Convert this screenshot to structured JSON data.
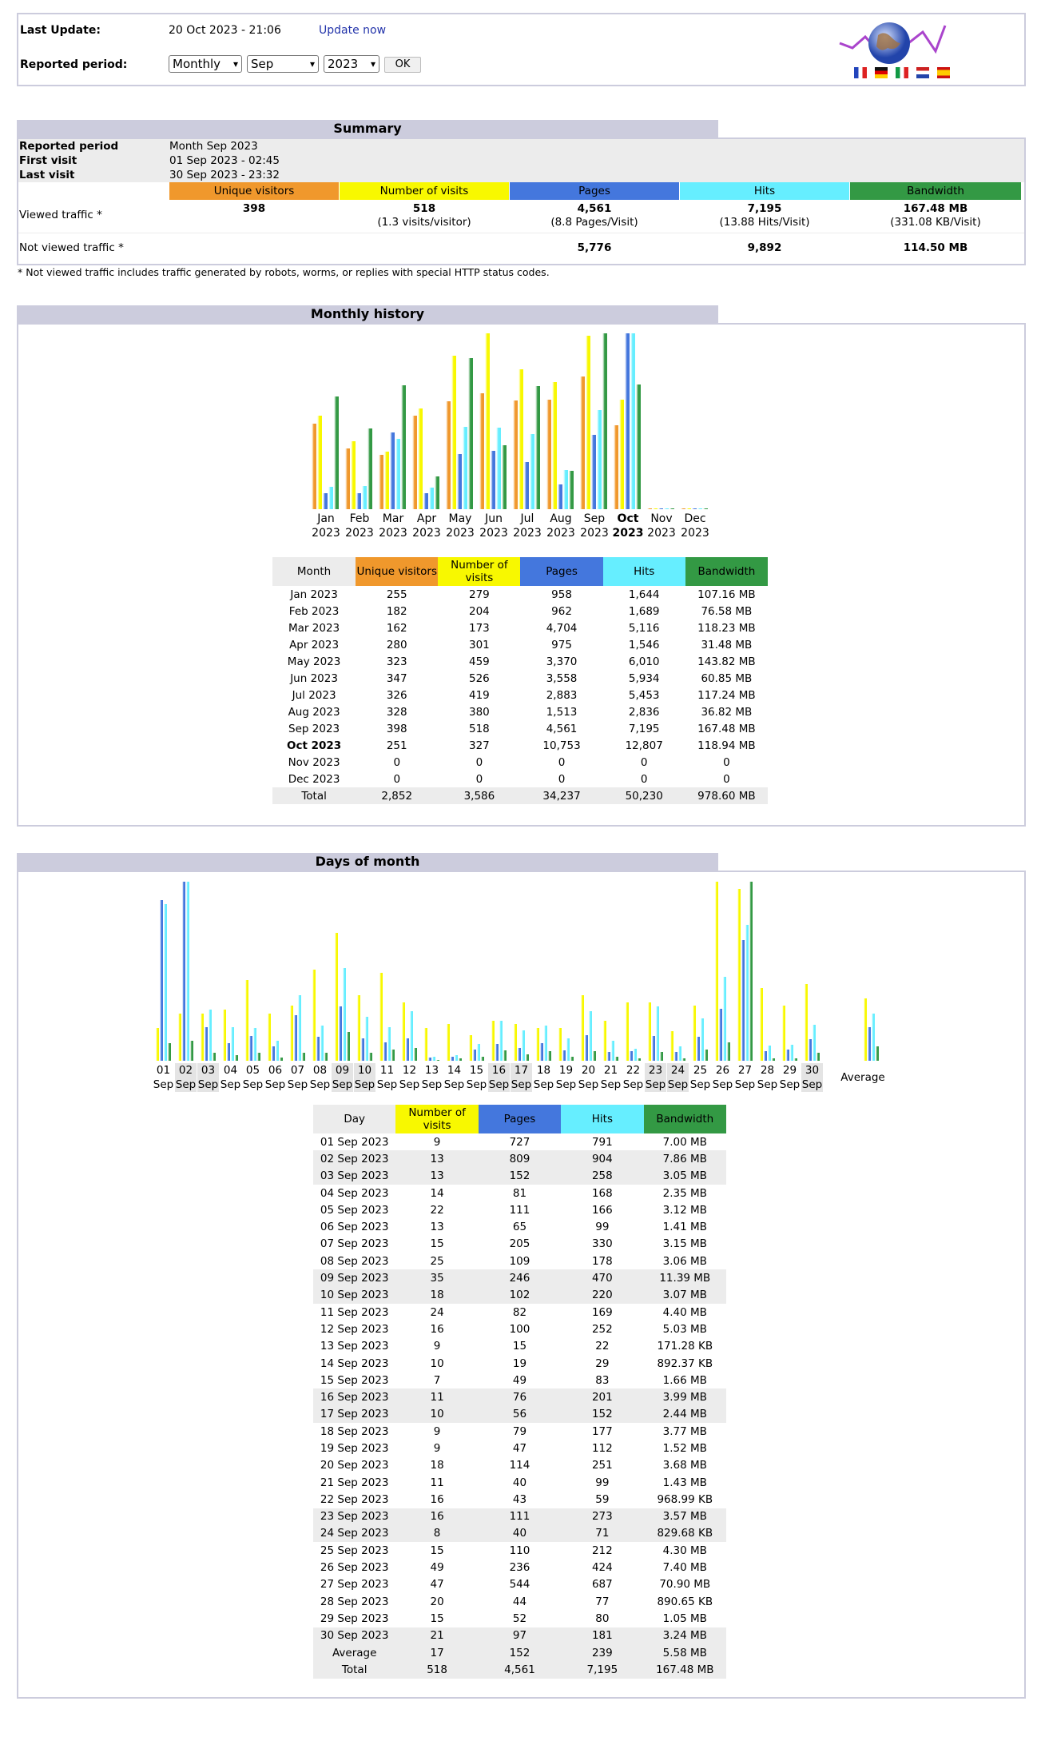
{
  "header": {
    "last_update_label": "Last Update:",
    "last_update_value": "20 Oct 2023 - 21:06",
    "update_now": "Update now",
    "reported_period_label": "Reported period:",
    "period_type": "Monthly",
    "month": "Sep",
    "year": "2023",
    "ok": "OK",
    "flags": [
      "#2255cc",
      "#111111",
      "#22aa44",
      "#cc2222",
      "#dd2222"
    ]
  },
  "summary": {
    "title": "Summary",
    "reported_period_label": "Reported period",
    "reported_period_value": "Month Sep 2023",
    "first_visit_label": "First visit",
    "first_visit_value": "01 Sep 2023 - 02:45",
    "last_visit_label": "Last visit",
    "last_visit_value": "30 Sep 2023 - 23:32",
    "columns": [
      "Unique visitors",
      "Number of visits",
      "Pages",
      "Hits",
      "Bandwidth"
    ],
    "viewed_label": "Viewed traffic *",
    "viewed": {
      "uv": "398",
      "visits": "518",
      "visits_sub": "(1.3 visits/visitor)",
      "pages": "4,561",
      "pages_sub": "(8.8 Pages/Visit)",
      "hits": "7,195",
      "hits_sub": "(13.88 Hits/Visit)",
      "bw": "167.48 MB",
      "bw_sub": "(331.08 KB/Visit)"
    },
    "notviewed_label": "Not viewed traffic *",
    "notviewed": {
      "pages": "5,776",
      "hits": "9,892",
      "bw": "114.50 MB"
    },
    "footnote": "* Not viewed traffic includes traffic generated by robots, worms, or replies with special HTTP status codes."
  },
  "colors": {
    "uv": "#f0982c",
    "visits": "#f8f800",
    "pages": "#4477dd",
    "hits": "#66eeff",
    "bandwidth": "#339944"
  },
  "monthly": {
    "title": "Monthly history",
    "headers": [
      "Month",
      "Unique visitors",
      "Number of visits",
      "Pages",
      "Hits",
      "Bandwidth"
    ],
    "rows": [
      [
        "Jan 2023",
        "255",
        "279",
        "958",
        "1,644",
        "107.16 MB"
      ],
      [
        "Feb 2023",
        "182",
        "204",
        "962",
        "1,689",
        "76.58 MB"
      ],
      [
        "Mar 2023",
        "162",
        "173",
        "4,704",
        "5,116",
        "118.23 MB"
      ],
      [
        "Apr 2023",
        "280",
        "301",
        "975",
        "1,546",
        "31.48 MB"
      ],
      [
        "May 2023",
        "323",
        "459",
        "3,370",
        "6,010",
        "143.82 MB"
      ],
      [
        "Jun 2023",
        "347",
        "526",
        "3,558",
        "5,934",
        "60.85 MB"
      ],
      [
        "Jul 2023",
        "326",
        "419",
        "2,883",
        "5,453",
        "117.24 MB"
      ],
      [
        "Aug 2023",
        "328",
        "380",
        "1,513",
        "2,836",
        "36.82 MB"
      ],
      [
        "Sep 2023",
        "398",
        "518",
        "4,561",
        "7,195",
        "167.48 MB"
      ],
      [
        "Oct 2023",
        "251",
        "327",
        "10,753",
        "12,807",
        "118.94 MB"
      ],
      [
        "Nov 2023",
        "0",
        "0",
        "0",
        "0",
        "0"
      ],
      [
        "Dec 2023",
        "0",
        "0",
        "0",
        "0",
        "0"
      ]
    ],
    "total": [
      "Total",
      "2,852",
      "3,586",
      "34,237",
      "50,230",
      "978.60 MB"
    ],
    "axis_months": [
      "Jan",
      "Feb",
      "Mar",
      "Apr",
      "May",
      "Jun",
      "Jul",
      "Aug",
      "Sep",
      "Oct",
      "Nov",
      "Dec"
    ],
    "axis_year": "2023"
  },
  "daily": {
    "title": "Days of month",
    "headers": [
      "Day",
      "Number of visits",
      "Pages",
      "Hits",
      "Bandwidth"
    ],
    "rows": [
      [
        "01 Sep 2023",
        "9",
        "727",
        "791",
        "7.00 MB"
      ],
      [
        "02 Sep 2023",
        "13",
        "809",
        "904",
        "7.86 MB"
      ],
      [
        "03 Sep 2023",
        "13",
        "152",
        "258",
        "3.05 MB"
      ],
      [
        "04 Sep 2023",
        "14",
        "81",
        "168",
        "2.35 MB"
      ],
      [
        "05 Sep 2023",
        "22",
        "111",
        "166",
        "3.12 MB"
      ],
      [
        "06 Sep 2023",
        "13",
        "65",
        "99",
        "1.41 MB"
      ],
      [
        "07 Sep 2023",
        "15",
        "205",
        "330",
        "3.15 MB"
      ],
      [
        "08 Sep 2023",
        "25",
        "109",
        "178",
        "3.06 MB"
      ],
      [
        "09 Sep 2023",
        "35",
        "246",
        "470",
        "11.39 MB"
      ],
      [
        "10 Sep 2023",
        "18",
        "102",
        "220",
        "3.07 MB"
      ],
      [
        "11 Sep 2023",
        "24",
        "82",
        "169",
        "4.40 MB"
      ],
      [
        "12 Sep 2023",
        "16",
        "100",
        "252",
        "5.03 MB"
      ],
      [
        "13 Sep 2023",
        "9",
        "15",
        "22",
        "171.28 KB"
      ],
      [
        "14 Sep 2023",
        "10",
        "19",
        "29",
        "892.37 KB"
      ],
      [
        "15 Sep 2023",
        "7",
        "49",
        "83",
        "1.66 MB"
      ],
      [
        "16 Sep 2023",
        "11",
        "76",
        "201",
        "3.99 MB"
      ],
      [
        "17 Sep 2023",
        "10",
        "56",
        "152",
        "2.44 MB"
      ],
      [
        "18 Sep 2023",
        "9",
        "79",
        "177",
        "3.77 MB"
      ],
      [
        "19 Sep 2023",
        "9",
        "47",
        "112",
        "1.52 MB"
      ],
      [
        "20 Sep 2023",
        "18",
        "114",
        "251",
        "3.68 MB"
      ],
      [
        "21 Sep 2023",
        "11",
        "40",
        "99",
        "1.43 MB"
      ],
      [
        "22 Sep 2023",
        "16",
        "43",
        "59",
        "968.99 KB"
      ],
      [
        "23 Sep 2023",
        "16",
        "111",
        "273",
        "3.57 MB"
      ],
      [
        "24 Sep 2023",
        "8",
        "40",
        "71",
        "829.68 KB"
      ],
      [
        "25 Sep 2023",
        "15",
        "110",
        "212",
        "4.30 MB"
      ],
      [
        "26 Sep 2023",
        "49",
        "236",
        "424",
        "7.40 MB"
      ],
      [
        "27 Sep 2023",
        "47",
        "544",
        "687",
        "70.90 MB"
      ],
      [
        "28 Sep 2023",
        "20",
        "44",
        "77",
        "890.65 KB"
      ],
      [
        "29 Sep 2023",
        "15",
        "52",
        "80",
        "1.05 MB"
      ],
      [
        "30 Sep 2023",
        "21",
        "97",
        "181",
        "3.24 MB"
      ]
    ],
    "weekend_days": [
      2,
      3,
      9,
      10,
      16,
      17,
      23,
      24,
      30
    ],
    "average": [
      "Average",
      "17",
      "152",
      "239",
      "5.58 MB"
    ],
    "total": [
      "Total",
      "518",
      "4,561",
      "7,195",
      "167.48 MB"
    ],
    "axis_month": "Sep",
    "average_label": "Average"
  },
  "chart_data": [
    {
      "type": "bar",
      "categories": [
        "Jan 2023",
        "Feb 2023",
        "Mar 2023",
        "Apr 2023",
        "May 2023",
        "Jun 2023",
        "Jul 2023",
        "Aug 2023",
        "Sep 2023",
        "Oct 2023",
        "Nov 2023",
        "Dec 2023"
      ],
      "series": [
        {
          "name": "Unique visitors",
          "values": [
            255,
            182,
            162,
            280,
            323,
            347,
            326,
            328,
            398,
            251,
            0,
            0
          ]
        },
        {
          "name": "Number of visits",
          "values": [
            279,
            204,
            173,
            301,
            459,
            526,
            419,
            380,
            518,
            327,
            0,
            0
          ]
        },
        {
          "name": "Pages",
          "values": [
            958,
            962,
            4704,
            975,
            3370,
            3558,
            2883,
            1513,
            4561,
            10753,
            0,
            0
          ]
        },
        {
          "name": "Hits",
          "values": [
            1644,
            1689,
            5116,
            1546,
            6010,
            5934,
            5453,
            2836,
            7195,
            12807,
            0,
            0
          ]
        },
        {
          "name": "Bandwidth",
          "values": [
            107.16,
            76.58,
            118.23,
            31.48,
            143.82,
            60.85,
            117.24,
            36.82,
            167.48,
            118.94,
            0,
            0
          ]
        }
      ]
    },
    {
      "type": "bar",
      "categories": [
        "01",
        "02",
        "03",
        "04",
        "05",
        "06",
        "07",
        "08",
        "09",
        "10",
        "11",
        "12",
        "13",
        "14",
        "15",
        "16",
        "17",
        "18",
        "19",
        "20",
        "21",
        "22",
        "23",
        "24",
        "25",
        "26",
        "27",
        "28",
        "29",
        "30",
        "Average"
      ],
      "series": [
        {
          "name": "Number of visits",
          "values": [
            9,
            13,
            13,
            14,
            22,
            13,
            15,
            25,
            35,
            18,
            24,
            16,
            9,
            10,
            7,
            11,
            10,
            9,
            9,
            18,
            11,
            16,
            16,
            8,
            15,
            49,
            47,
            20,
            15,
            21,
            17
          ]
        },
        {
          "name": "Pages",
          "values": [
            727,
            809,
            152,
            81,
            111,
            65,
            205,
            109,
            246,
            102,
            82,
            100,
            15,
            19,
            49,
            76,
            56,
            79,
            47,
            114,
            40,
            43,
            111,
            40,
            110,
            236,
            544,
            44,
            52,
            97,
            152
          ]
        },
        {
          "name": "Hits",
          "values": [
            791,
            904,
            258,
            168,
            166,
            99,
            330,
            178,
            470,
            220,
            169,
            252,
            22,
            29,
            83,
            201,
            152,
            177,
            112,
            251,
            99,
            59,
            273,
            71,
            212,
            424,
            687,
            77,
            80,
            181,
            239
          ]
        },
        {
          "name": "Bandwidth",
          "values": [
            7.0,
            7.86,
            3.05,
            2.35,
            3.12,
            1.41,
            3.15,
            3.06,
            11.39,
            3.07,
            4.4,
            5.03,
            0.17,
            0.87,
            1.66,
            3.99,
            2.44,
            3.77,
            1.52,
            3.68,
            1.43,
            0.95,
            3.57,
            0.81,
            4.3,
            7.4,
            70.9,
            0.87,
            1.05,
            3.24,
            5.58
          ]
        }
      ]
    }
  ]
}
